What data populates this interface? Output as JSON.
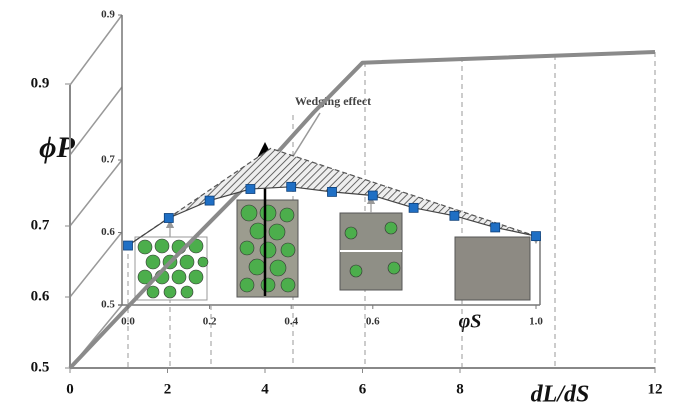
{
  "chart_data": [
    {
      "type": "line",
      "x_label": "dL/dS",
      "y_label": "ϕP",
      "x": [
        0,
        2,
        4,
        5,
        6,
        12
      ],
      "values": [
        0.5,
        0.645,
        0.784,
        0.86,
        0.93,
        0.945
      ],
      "color": "#8a8a8a",
      "xlim": [
        0,
        12
      ],
      "xticks": [
        0,
        2,
        4,
        6,
        8,
        12
      ],
      "ylim": [
        0.5,
        0.9
      ],
      "yticks": [
        0.5,
        0.6,
        0.7,
        0.9
      ]
    },
    {
      "type": "line",
      "x_label": "φS",
      "annotation": "Wedging effect",
      "xlim": [
        0,
        1
      ],
      "xticks": [
        {
          "value": 0,
          "label": "0.0"
        },
        0.2,
        0.4,
        0.6,
        {
          "value": 1,
          "label": "1.0"
        }
      ],
      "ylim": [
        0.5,
        0.9
      ],
      "yticks": [
        0.5,
        0.6,
        0.7,
        0.9
      ],
      "series": [
        {
          "color": "#1f6fc4",
          "x": [
            0,
            0.1,
            0.2,
            0.3,
            0.4,
            0.5,
            0.6,
            0.7,
            0.8,
            0.9,
            1.0
          ],
          "values": [
            0.582,
            0.62,
            0.644,
            0.66,
            0.663,
            0.656,
            0.651,
            0.634,
            0.623,
            0.607,
            0.595
          ]
        },
        {
          "color": "#555555",
          "x": [
            0,
            0.35,
            1.0
          ],
          "values": [
            0.582,
            0.716,
            0.595
          ]
        }
      ]
    }
  ]
}
